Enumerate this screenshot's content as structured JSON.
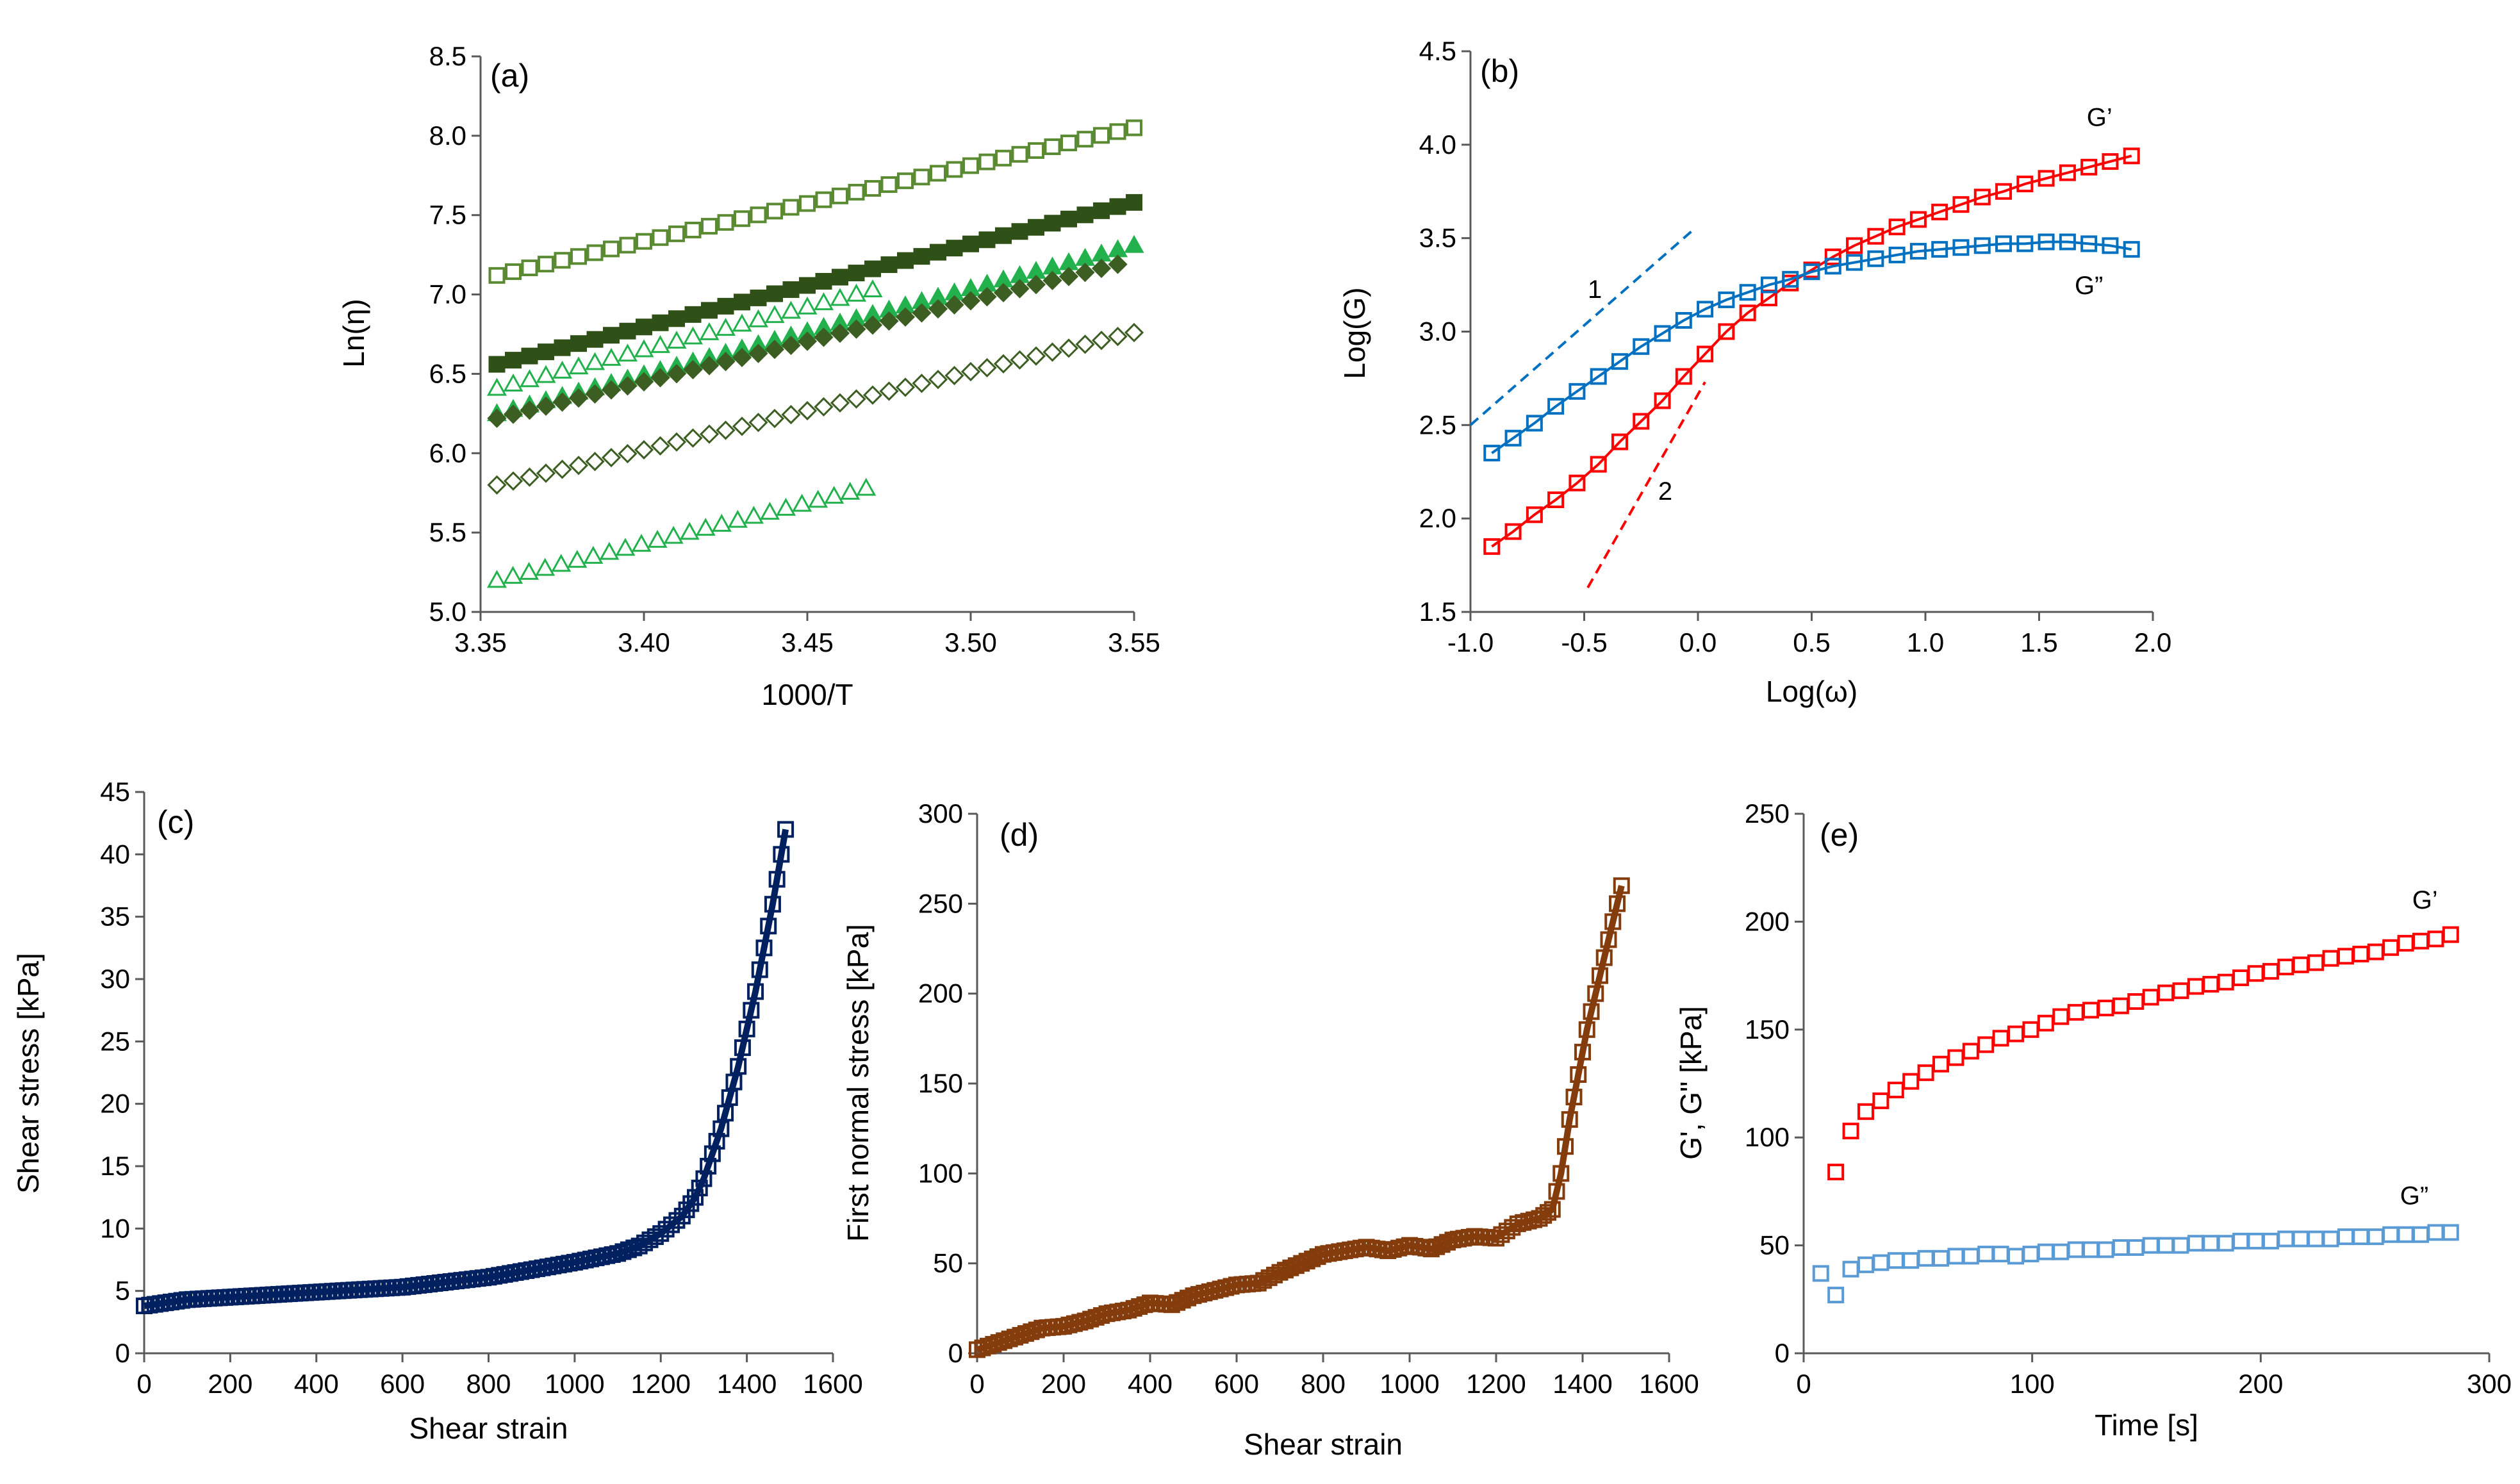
{
  "chart_data": [
    {
      "panel": "(a)",
      "type": "scatter",
      "xlabel": "1000/T",
      "ylabel": "Ln(η)",
      "xlim": [
        3.35,
        3.55
      ],
      "ylim": [
        5.0,
        8.5
      ],
      "xticks": [
        "3.35",
        "3.40",
        "3.45",
        "3.50",
        "3.55"
      ],
      "yticks": [
        "5.0",
        "5.5",
        "6.0",
        "6.5",
        "7.0",
        "7.5",
        "8.0",
        "8.5"
      ],
      "grid": false,
      "series": [
        {
          "marker": "square-open",
          "color": "#5a8a32",
          "x_range": [
            3.355,
            3.55
          ],
          "y_range": [
            7.12,
            8.05
          ]
        },
        {
          "marker": "square-filled",
          "color": "#2f5016",
          "x_range": [
            3.355,
            3.55
          ],
          "y_range": [
            6.56,
            7.58
          ]
        },
        {
          "marker": "triangle-open",
          "color": "#22b14c",
          "x_range": [
            3.355,
            3.47
          ],
          "y_range": [
            6.41,
            7.03
          ]
        },
        {
          "marker": "triangle-filled",
          "color": "#22b14c",
          "x_range": [
            3.355,
            3.55
          ],
          "y_range": [
            6.25,
            7.31
          ]
        },
        {
          "marker": "diamond-filled",
          "color": "#3d5e22",
          "x_range": [
            3.355,
            3.545
          ],
          "y_range": [
            6.22,
            7.19
          ]
        },
        {
          "marker": "diamond-open",
          "color": "#3d5e22",
          "x_range": [
            3.355,
            3.55
          ],
          "y_range": [
            5.8,
            6.76
          ]
        },
        {
          "marker": "triangle-open",
          "color": "#22b14c",
          "x_range": [
            3.355,
            3.468
          ],
          "y_range": [
            5.2,
            5.78
          ]
        }
      ]
    },
    {
      "panel": "(b)",
      "type": "scatter",
      "xlabel": "Log(ω)",
      "ylabel": "Log(G)",
      "xlim": [
        -1.0,
        2.2
      ],
      "ylim": [
        1.5,
        4.5
      ],
      "xticks": [
        "-1.0",
        "-0.5",
        "0.0",
        "0.5",
        "1.0",
        "1.5",
        "2.0"
      ],
      "yticks": [
        "1.5",
        "2.0",
        "2.5",
        "3.0",
        "3.5",
        "4.0",
        "4.5"
      ],
      "grid": false,
      "series": [
        {
          "name": "G’",
          "color": "#ff0000",
          "x": [
            -0.9,
            -0.8,
            -0.7,
            -0.6,
            -0.5,
            -0.4,
            -0.3,
            -0.2,
            -0.1,
            0.0,
            0.1,
            0.2,
            0.3,
            0.4,
            0.5,
            0.6,
            0.7,
            0.8,
            0.9,
            1.0,
            1.1,
            1.2,
            1.3,
            1.4,
            1.5,
            1.6,
            1.7,
            1.8,
            1.9,
            2.0,
            2.1
          ],
          "y": [
            1.85,
            1.93,
            2.02,
            2.1,
            2.19,
            2.29,
            2.41,
            2.52,
            2.63,
            2.76,
            2.88,
            3.0,
            3.1,
            3.18,
            3.26,
            3.33,
            3.4,
            3.46,
            3.51,
            3.56,
            3.6,
            3.64,
            3.68,
            3.72,
            3.75,
            3.79,
            3.82,
            3.85,
            3.88,
            3.91,
            3.94
          ]
        },
        {
          "name": "G”",
          "color": "#0070c0",
          "x": [
            -0.9,
            -0.8,
            -0.7,
            -0.6,
            -0.5,
            -0.4,
            -0.3,
            -0.2,
            -0.1,
            0.0,
            0.1,
            0.2,
            0.3,
            0.4,
            0.5,
            0.6,
            0.7,
            0.8,
            0.9,
            1.0,
            1.1,
            1.2,
            1.3,
            1.4,
            1.5,
            1.6,
            1.7,
            1.8,
            1.9,
            2.0,
            2.1
          ],
          "y": [
            2.35,
            2.43,
            2.51,
            2.6,
            2.68,
            2.76,
            2.84,
            2.92,
            2.99,
            3.06,
            3.12,
            3.17,
            3.21,
            3.25,
            3.28,
            3.32,
            3.35,
            3.37,
            3.39,
            3.41,
            3.43,
            3.44,
            3.45,
            3.46,
            3.47,
            3.47,
            3.48,
            3.48,
            3.47,
            3.46,
            3.44
          ]
        }
      ],
      "guide_lines": [
        {
          "label": "1",
          "color": "#0070c0",
          "slope": 1,
          "x": [
            -1.0,
            0.05
          ],
          "y": [
            2.5,
            3.55
          ]
        },
        {
          "label": "2",
          "color": "#ff0000",
          "slope": 2,
          "x": [
            -0.45,
            0.1
          ],
          "y": [
            1.63,
            2.73
          ]
        }
      ]
    },
    {
      "panel": "(c)",
      "type": "scatter",
      "xlabel": "Shear strain",
      "ylabel": "Shear stress [kPa]",
      "xlim": [
        0,
        1600
      ],
      "ylim": [
        0,
        45
      ],
      "xticks": [
        "0",
        "200",
        "400",
        "600",
        "800",
        "1000",
        "1200",
        "1400",
        "1600"
      ],
      "yticks": [
        "0",
        "5",
        "10",
        "15",
        "20",
        "25",
        "30",
        "35",
        "40",
        "45"
      ],
      "grid": false,
      "series": [
        {
          "color": "#002060",
          "x": [
            0,
            100,
            200,
            300,
            400,
            500,
            600,
            700,
            800,
            900,
            1000,
            1100,
            1150,
            1200,
            1250,
            1280,
            1300,
            1320,
            1340,
            1360,
            1380,
            1400,
            1420,
            1440,
            1460,
            1480,
            1490
          ],
          "y": [
            3.8,
            4.3,
            4.5,
            4.7,
            4.9,
            5.1,
            5.3,
            5.7,
            6.1,
            6.7,
            7.3,
            8.0,
            8.6,
            9.6,
            11.0,
            12.5,
            14.0,
            16.0,
            18.0,
            20.5,
            23.0,
            26.0,
            29.0,
            32.5,
            36.0,
            40.0,
            42.0
          ]
        }
      ]
    },
    {
      "panel": "(d)",
      "type": "scatter",
      "xlabel": "Shear strain",
      "ylabel": "First normal stress [kPa]",
      "xlim": [
        0,
        1600
      ],
      "ylim": [
        0,
        300
      ],
      "xticks": [
        "0",
        "200",
        "400",
        "600",
        "800",
        "1000",
        "1200",
        "1400",
        "1600"
      ],
      "yticks": [
        "0",
        "50",
        "100",
        "150",
        "200",
        "250",
        "300"
      ],
      "grid": false,
      "series": [
        {
          "color": "#843c0c",
          "x": [
            0,
            50,
            100,
            150,
            200,
            250,
            300,
            350,
            400,
            450,
            500,
            550,
            600,
            650,
            700,
            750,
            800,
            850,
            900,
            950,
            1000,
            1050,
            1100,
            1150,
            1200,
            1250,
            1300,
            1330,
            1350,
            1370,
            1390,
            1410,
            1430,
            1450,
            1470,
            1490
          ],
          "y": [
            2,
            6,
            10,
            14,
            15,
            18,
            22,
            24,
            28,
            27,
            32,
            35,
            38,
            39,
            45,
            50,
            55,
            57,
            59,
            57,
            60,
            58,
            63,
            65,
            64,
            72,
            75,
            80,
            100,
            130,
            155,
            180,
            200,
            220,
            240,
            260
          ]
        }
      ]
    },
    {
      "panel": "(e)",
      "type": "scatter",
      "xlabel": "Time [s]",
      "ylabel": "G', G\" [kPa]",
      "xlim": [
        0,
        320
      ],
      "ylim": [
        0,
        250
      ],
      "xticks": [
        "0",
        "100",
        "200",
        "300"
      ],
      "yticks": [
        "0",
        "50",
        "100",
        "150",
        "200",
        "250"
      ],
      "grid": false,
      "series": [
        {
          "name": "G’",
          "color": "#ff0000",
          "x": [
            15,
            22,
            29,
            36,
            43,
            50,
            57,
            64,
            71,
            78,
            85,
            92,
            99,
            106,
            113,
            120,
            127,
            134,
            141,
            148,
            155,
            162,
            169,
            176,
            183,
            190,
            197,
            204,
            211,
            218,
            225,
            232,
            239,
            246,
            253,
            260,
            267,
            274,
            281,
            288,
            295,
            302
          ],
          "y": [
            84,
            103,
            112,
            117,
            122,
            126,
            130,
            134,
            137,
            140,
            143,
            146,
            148,
            150,
            153,
            156,
            158,
            159,
            160,
            161,
            163,
            165,
            167,
            168,
            170,
            171,
            172,
            174,
            176,
            177,
            179,
            180,
            181,
            183,
            184,
            185,
            186,
            188,
            190,
            191,
            192,
            194
          ]
        },
        {
          "name": "G”",
          "color": "#5b9bd5",
          "x": [
            8,
            15,
            22,
            29,
            36,
            43,
            50,
            57,
            64,
            71,
            78,
            85,
            92,
            99,
            106,
            113,
            120,
            127,
            134,
            141,
            148,
            155,
            162,
            169,
            176,
            183,
            190,
            197,
            204,
            211,
            218,
            225,
            232,
            239,
            246,
            253,
            260,
            267,
            274,
            281,
            288,
            295,
            302
          ],
          "y": [
            37,
            27,
            39,
            41,
            42,
            43,
            43,
            44,
            44,
            45,
            45,
            46,
            46,
            45,
            46,
            47,
            47,
            48,
            48,
            48,
            49,
            49,
            50,
            50,
            50,
            51,
            51,
            51,
            52,
            52,
            52,
            53,
            53,
            53,
            53,
            54,
            54,
            54,
            55,
            55,
            55,
            56,
            56
          ]
        }
      ]
    }
  ]
}
